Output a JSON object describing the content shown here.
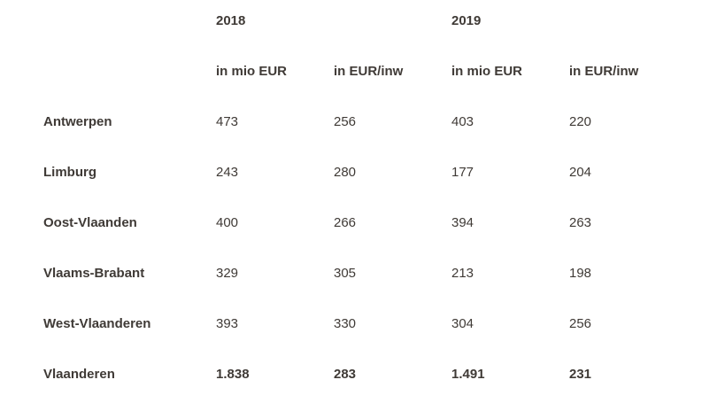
{
  "table": {
    "year_headers": [
      "2018",
      "2019"
    ],
    "sub_headers": [
      "in mio EUR",
      "in EUR/inw",
      "in mio EUR",
      "in EUR/inw"
    ],
    "rows": [
      {
        "region": "Antwerpen",
        "values": [
          "473",
          "256",
          "403",
          "220"
        ]
      },
      {
        "region": "Limburg",
        "values": [
          "243",
          "280",
          "177",
          "204"
        ]
      },
      {
        "region": "Oost-Vlaanden",
        "values": [
          "400",
          "266",
          "394",
          "263"
        ]
      },
      {
        "region": "Vlaams-Brabant",
        "values": [
          "329",
          "305",
          "213",
          "198"
        ]
      },
      {
        "region": "West-Vlaanderen",
        "values": [
          "393",
          "330",
          "304",
          "256"
        ]
      }
    ],
    "total": {
      "region": "Vlaanderen",
      "values": [
        "1.838",
        "283",
        "1.491",
        "231"
      ]
    }
  }
}
